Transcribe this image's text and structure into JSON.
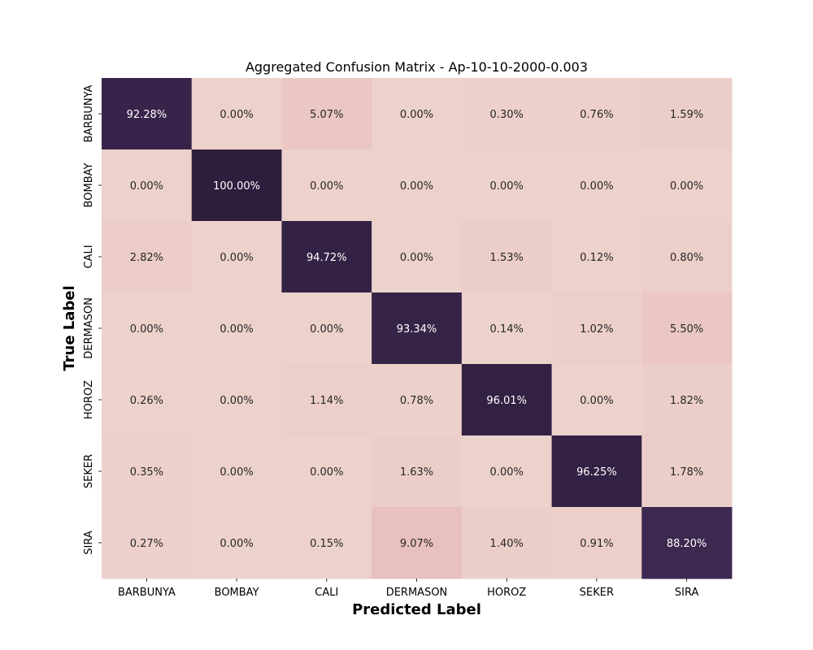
{
  "chart_data": {
    "type": "heatmap",
    "title": "Aggregated Confusion Matrix - Ap-10-10-2000-0.003",
    "xlabel": "Predicted Label",
    "ylabel": "True Label",
    "x_categories": [
      "BARBUNYA",
      "BOMBAY",
      "CALI",
      "DERMASON",
      "HOROZ",
      "SEKER",
      "SIRA"
    ],
    "y_categories": [
      "BARBUNYA",
      "BOMBAY",
      "CALI",
      "DERMASON",
      "HOROZ",
      "SEKER",
      "SIRA"
    ],
    "values": [
      [
        92.28,
        0.0,
        5.07,
        0.0,
        0.3,
        0.76,
        1.59
      ],
      [
        0.0,
        100.0,
        0.0,
        0.0,
        0.0,
        0.0,
        0.0
      ],
      [
        2.82,
        0.0,
        94.72,
        0.0,
        1.53,
        0.12,
        0.8
      ],
      [
        0.0,
        0.0,
        0.0,
        93.34,
        0.14,
        1.02,
        5.5
      ],
      [
        0.26,
        0.0,
        1.14,
        0.78,
        96.01,
        0.0,
        1.82
      ],
      [
        0.35,
        0.0,
        0.0,
        1.63,
        0.0,
        96.25,
        1.78
      ],
      [
        0.27,
        0.0,
        0.15,
        9.07,
        1.4,
        0.91,
        88.2
      ]
    ],
    "value_format": "percent",
    "vmin": 0,
    "vmax": 100,
    "colorbar": false,
    "colormap": "cubehelix-light",
    "colors": {
      "low": "#edd1cb",
      "high": "#2d1e3e",
      "text_dark": "#262626",
      "text_light": "#ffffff"
    }
  }
}
